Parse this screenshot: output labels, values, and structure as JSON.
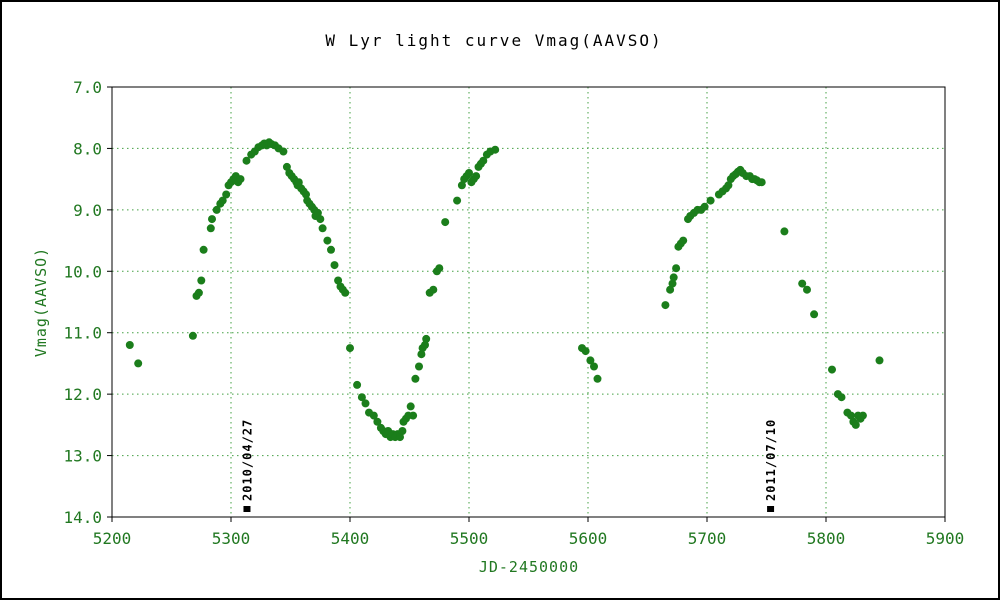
{
  "chart_data": {
    "type": "scatter",
    "title": "W Lyr  light curve  Vmag(AAVSO)",
    "xlabel": "JD-2450000",
    "ylabel": "Vmag(AAVSO)",
    "xlim": [
      5200,
      5900
    ],
    "ylim": [
      7.0,
      14.0
    ],
    "y_inverted": true,
    "grid": true,
    "legend": "none",
    "xticks": [
      "5200",
      "5300",
      "5400",
      "5500",
      "5600",
      "5700",
      "5800",
      "5900"
    ],
    "yticks": [
      "7.0",
      "8.0",
      "9.0",
      "10.0",
      "11.0",
      "12.0",
      "13.0",
      "14.0"
    ],
    "point_color": "#1b7e1b",
    "axis_text_color": "#217821",
    "grid_color": "#43a043",
    "annotations": [
      {
        "label": "2010/04/27",
        "x": 5313
      },
      {
        "label": "2011/07/10",
        "x": 5753
      }
    ],
    "series": [
      {
        "name": "Vmag (AAVSO)",
        "points": [
          [
            5215,
            11.2
          ],
          [
            5222,
            11.5
          ],
          [
            5268,
            11.05
          ],
          [
            5271,
            10.4
          ],
          [
            5273,
            10.35
          ],
          [
            5275,
            10.15
          ],
          [
            5277,
            9.65
          ],
          [
            5283,
            9.3
          ],
          [
            5284,
            9.15
          ],
          [
            5288,
            9.0
          ],
          [
            5291,
            8.9
          ],
          [
            5293,
            8.85
          ],
          [
            5296,
            8.75
          ],
          [
            5298,
            8.6
          ],
          [
            5300,
            8.55
          ],
          [
            5302,
            8.5
          ],
          [
            5304,
            8.45
          ],
          [
            5306,
            8.55
          ],
          [
            5308,
            8.5
          ],
          [
            5313,
            8.2
          ],
          [
            5317,
            8.1
          ],
          [
            5320,
            8.05
          ],
          [
            5323,
            7.98
          ],
          [
            5326,
            7.95
          ],
          [
            5328,
            7.92
          ],
          [
            5330,
            7.95
          ],
          [
            5332,
            7.9
          ],
          [
            5334,
            7.93
          ],
          [
            5337,
            7.95
          ],
          [
            5340,
            8.0
          ],
          [
            5344,
            8.05
          ],
          [
            5347,
            8.3
          ],
          [
            5349,
            8.4
          ],
          [
            5351,
            8.45
          ],
          [
            5353,
            8.5
          ],
          [
            5355,
            8.55
          ],
          [
            5356,
            8.6
          ],
          [
            5357,
            8.55
          ],
          [
            5359,
            8.65
          ],
          [
            5361,
            8.7
          ],
          [
            5363,
            8.75
          ],
          [
            5364,
            8.85
          ],
          [
            5366,
            8.9
          ],
          [
            5368,
            8.95
          ],
          [
            5370,
            9.0
          ],
          [
            5371,
            9.1
          ],
          [
            5373,
            9.05
          ],
          [
            5375,
            9.15
          ],
          [
            5377,
            9.3
          ],
          [
            5381,
            9.5
          ],
          [
            5384,
            9.65
          ],
          [
            5387,
            9.9
          ],
          [
            5390,
            10.15
          ],
          [
            5392,
            10.25
          ],
          [
            5394,
            10.3
          ],
          [
            5396,
            10.35
          ],
          [
            5400,
            11.25
          ],
          [
            5406,
            11.85
          ],
          [
            5410,
            12.05
          ],
          [
            5413,
            12.15
          ],
          [
            5416,
            12.3
          ],
          [
            5420,
            12.35
          ],
          [
            5423,
            12.45
          ],
          [
            5426,
            12.55
          ],
          [
            5428,
            12.6
          ],
          [
            5430,
            12.65
          ],
          [
            5432,
            12.6
          ],
          [
            5434,
            12.7
          ],
          [
            5436,
            12.65
          ],
          [
            5438,
            12.7
          ],
          [
            5440,
            12.65
          ],
          [
            5442,
            12.7
          ],
          [
            5444,
            12.6
          ],
          [
            5445,
            12.45
          ],
          [
            5447,
            12.4
          ],
          [
            5449,
            12.35
          ],
          [
            5451,
            12.2
          ],
          [
            5453,
            12.35
          ],
          [
            5455,
            11.75
          ],
          [
            5458,
            11.55
          ],
          [
            5460,
            11.35
          ],
          [
            5461,
            11.25
          ],
          [
            5463,
            11.2
          ],
          [
            5464,
            11.1
          ],
          [
            5467,
            10.35
          ],
          [
            5470,
            10.3
          ],
          [
            5473,
            10.0
          ],
          [
            5475,
            9.95
          ],
          [
            5480,
            9.2
          ],
          [
            5490,
            8.85
          ],
          [
            5494,
            8.6
          ],
          [
            5496,
            8.5
          ],
          [
            5498,
            8.45
          ],
          [
            5500,
            8.4
          ],
          [
            5502,
            8.55
          ],
          [
            5504,
            8.5
          ],
          [
            5506,
            8.45
          ],
          [
            5508,
            8.3
          ],
          [
            5510,
            8.25
          ],
          [
            5512,
            8.2
          ],
          [
            5515,
            8.1
          ],
          [
            5518,
            8.05
          ],
          [
            5522,
            8.02
          ],
          [
            5595,
            11.25
          ],
          [
            5598,
            11.3
          ],
          [
            5602,
            11.45
          ],
          [
            5605,
            11.55
          ],
          [
            5608,
            11.75
          ],
          [
            5665,
            10.55
          ],
          [
            5669,
            10.3
          ],
          [
            5671,
            10.2
          ],
          [
            5672,
            10.1
          ],
          [
            5674,
            9.95
          ],
          [
            5676,
            9.6
          ],
          [
            5678,
            9.55
          ],
          [
            5680,
            9.5
          ],
          [
            5684,
            9.15
          ],
          [
            5686,
            9.1
          ],
          [
            5689,
            9.05
          ],
          [
            5692,
            9.0
          ],
          [
            5695,
            9.0
          ],
          [
            5698,
            8.95
          ],
          [
            5703,
            8.85
          ],
          [
            5710,
            8.75
          ],
          [
            5713,
            8.7
          ],
          [
            5716,
            8.65
          ],
          [
            5718,
            8.6
          ],
          [
            5720,
            8.5
          ],
          [
            5722,
            8.45
          ],
          [
            5724,
            8.42
          ],
          [
            5726,
            8.38
          ],
          [
            5728,
            8.35
          ],
          [
            5730,
            8.4
          ],
          [
            5733,
            8.45
          ],
          [
            5736,
            8.45
          ],
          [
            5738,
            8.5
          ],
          [
            5740,
            8.5
          ],
          [
            5742,
            8.52
          ],
          [
            5744,
            8.55
          ],
          [
            5746,
            8.55
          ],
          [
            5765,
            9.35
          ],
          [
            5780,
            10.2
          ],
          [
            5784,
            10.3
          ],
          [
            5790,
            10.7
          ],
          [
            5805,
            11.6
          ],
          [
            5810,
            12.0
          ],
          [
            5813,
            12.05
          ],
          [
            5818,
            12.3
          ],
          [
            5821,
            12.35
          ],
          [
            5823,
            12.45
          ],
          [
            5825,
            12.5
          ],
          [
            5827,
            12.35
          ],
          [
            5829,
            12.4
          ],
          [
            5831,
            12.35
          ],
          [
            5845,
            11.45
          ]
        ]
      }
    ]
  }
}
